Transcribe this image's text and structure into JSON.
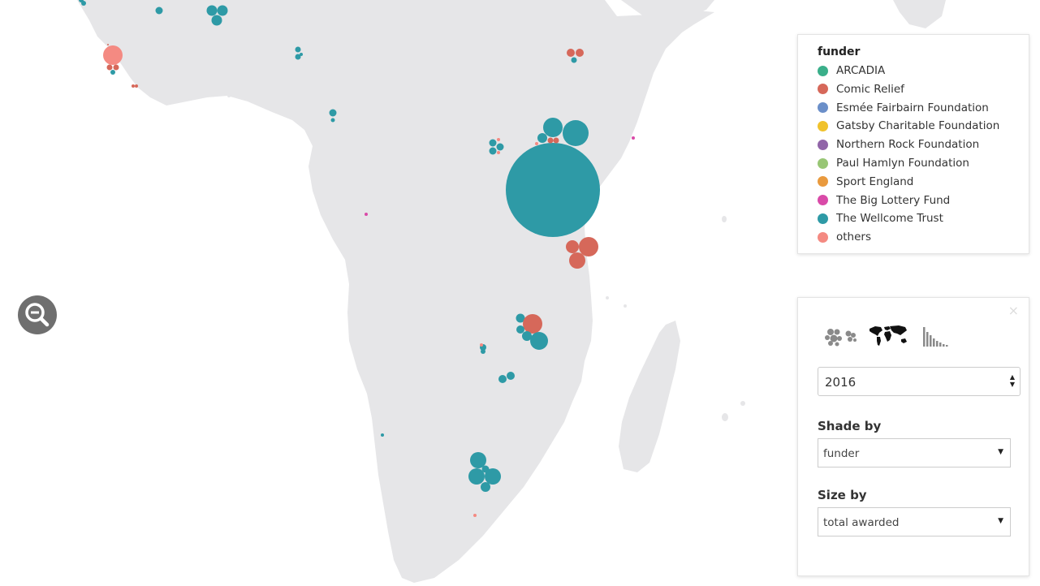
{
  "colors": {
    "land": "#e6e6e8",
    "ARCADIA": "#3aaf8a",
    "Comic Relief": "#d6685a",
    "Esmée Fairbairn Foundation": "#6b8fc9",
    "Gatsby Charitable Foundation": "#f0c22c",
    "Northern Rock Foundation": "#9165a8",
    "Paul Hamlyn Foundation": "#98c675",
    "Sport England": "#e99a3e",
    "The Big Lottery Fund": "#d94aa8",
    "The Wellcome Trust": "#2e9aa6",
    "others": "#f48a82"
  },
  "legend": {
    "title": "funder",
    "items": [
      {
        "label": "ARCADIA",
        "color": "#3aaf8a"
      },
      {
        "label": "Comic Relief",
        "color": "#d6685a"
      },
      {
        "label": "Esmée Fairbairn Foundation",
        "color": "#6b8fc9"
      },
      {
        "label": "Gatsby Charitable Foundation",
        "color": "#f0c22c"
      },
      {
        "label": "Northern Rock Foundation",
        "color": "#9165a8"
      },
      {
        "label": "Paul Hamlyn Foundation",
        "color": "#98c675"
      },
      {
        "label": "Sport England",
        "color": "#e99a3e"
      },
      {
        "label": "The Big Lottery Fund",
        "color": "#d94aa8"
      },
      {
        "label": "The Wellcome Trust",
        "color": "#2e9aa6"
      },
      {
        "label": "others",
        "color": "#f48a82"
      }
    ]
  },
  "controls": {
    "close": "×",
    "views": [
      "bubble-cluster-icon",
      "world-map-icon",
      "histogram-icon"
    ],
    "year": "2016",
    "shade_label": "Shade by",
    "shade_value": "funder",
    "size_label": "Size by",
    "size_value": "total awarded"
  },
  "zoom": {
    "icon": "zoom-out-icon"
  }
}
